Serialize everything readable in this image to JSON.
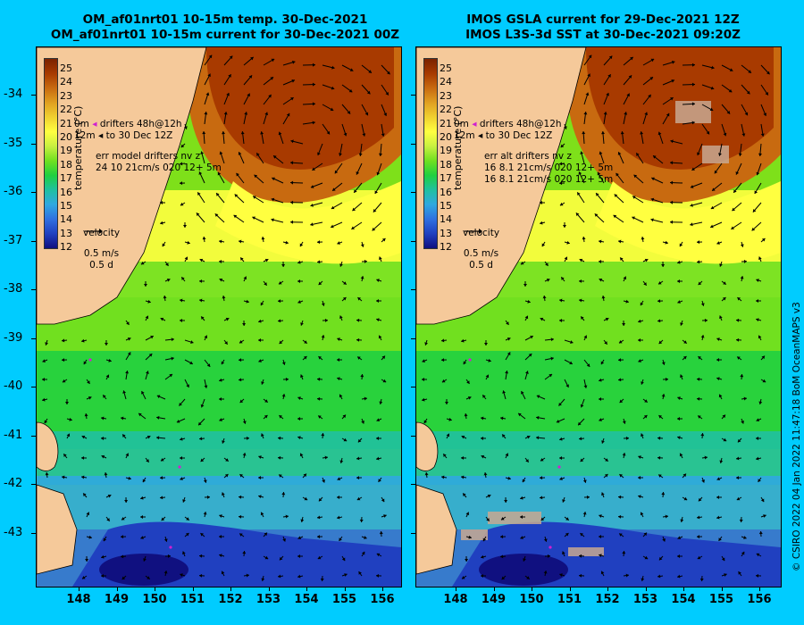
{
  "left_panel": {
    "title_line1": "OM_af01nrt01 10-15m temp. 30-Dec-2021",
    "title_line2": "OM_af01nrt01 10-15m current for 30-Dec-2021 00Z",
    "legend": {
      "drifters_line1": "drifters 48h@12h",
      "drifters_prefix1": "0m",
      "drifters_prefix2": "12m",
      "drifters_line2": "to 30 Dec 12Z",
      "err_title": "err model drifters nv z",
      "err_line1": "24 10 21cm/s 020 12+ 5m",
      "err_line2": "",
      "velocity_label": "velocity",
      "velocity_scale": "0.5 m/s",
      "velocity_days": "0.5 d"
    }
  },
  "right_panel": {
    "title_line1": "IMOS GSLA current for 29-Dec-2021 12Z",
    "title_line2": "IMOS L3S-3d SST at 30-Dec-2021 09:20Z",
    "legend": {
      "drifters_line1": "drifters 48h@12h",
      "drifters_prefix1": "0m",
      "drifters_prefix2": "12m",
      "drifters_line2": "to 30 Dec 12Z",
      "err_title": "err alt drifters nv z",
      "err_line1": "16 8.1 21cm/s 020 12+ 5m",
      "err_line2": "16 8.1 21cm/s 020 12+ 5m",
      "velocity_label": "velocity",
      "velocity_scale": "0.5 m/s",
      "velocity_days": "0.5 d"
    }
  },
  "colorbar": {
    "unit": "temperature (°C)",
    "ticks": [
      "25",
      "24",
      "23",
      "22",
      "21",
      "20",
      "19",
      "18",
      "17",
      "16",
      "15",
      "14",
      "13",
      "12"
    ],
    "colors": [
      "#7a2200",
      "#a83a00",
      "#c86a10",
      "#e0a020",
      "#f0d030",
      "#ffff40",
      "#c8f040",
      "#70e020",
      "#20d040",
      "#20c0a0",
      "#30a8e0",
      "#3070e0",
      "#2040c0",
      "#101080"
    ]
  },
  "axes": {
    "lat_labels": [
      "-34",
      "-35",
      "-36",
      "-37",
      "-38",
      "-39",
      "-40",
      "-41",
      "-42",
      "-43"
    ],
    "lon_labels": [
      "148",
      "149",
      "150",
      "151",
      "152",
      "153",
      "154",
      "155",
      "156"
    ]
  },
  "credit": "© CSIRO 2022   04 Jan 2022 11:47:18 BoM OceanMAPS v3",
  "colors": {
    "background": "#00ccff",
    "land": "#f5c99a",
    "drifter": "#d020d0"
  }
}
